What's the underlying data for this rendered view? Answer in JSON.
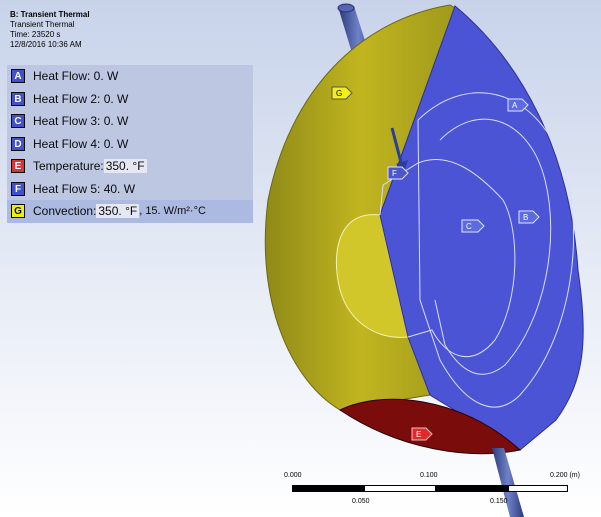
{
  "header": {
    "title": "B: Transient Thermal",
    "subtitle": "Transient Thermal",
    "time": "Time: 23520 s",
    "date": "12/8/2016 10:36 AM"
  },
  "legend": [
    {
      "letter": "A",
      "label": "Heat Flow: 0. W",
      "color": "#3b49c9"
    },
    {
      "letter": "B",
      "label": "Heat Flow 2: 0. W",
      "color": "#3b49c9"
    },
    {
      "letter": "C",
      "label": "Heat Flow 3: 0. W",
      "color": "#3b49c9"
    },
    {
      "letter": "D",
      "label": "Heat Flow 4: 0. W",
      "color": "#3b49c9"
    },
    {
      "letter": "E",
      "label_prefix": "Temperature: ",
      "value": "350. °F",
      "color": "#d62b2b"
    },
    {
      "letter": "F",
      "label": "Heat Flow 5: 40. W",
      "color": "#3b49c9"
    },
    {
      "letter": "G",
      "label_prefix": "Convection: ",
      "value": "350. °F",
      "suffix": ", 15. W/m²·°C",
      "color": "#f1f000"
    }
  ],
  "model_tags": [
    "A",
    "B",
    "C",
    "F",
    "G",
    "E"
  ],
  "scale": {
    "top_ticks": [
      "0.000",
      "0.100",
      "0.200 (m)"
    ],
    "bottom_ticks": [
      "0.050",
      "0.150"
    ]
  },
  "colors": {
    "shell": "#c0b41d",
    "face": "#4c54d6",
    "base": "#8e1111",
    "background_top": "#c8d3ea"
  }
}
